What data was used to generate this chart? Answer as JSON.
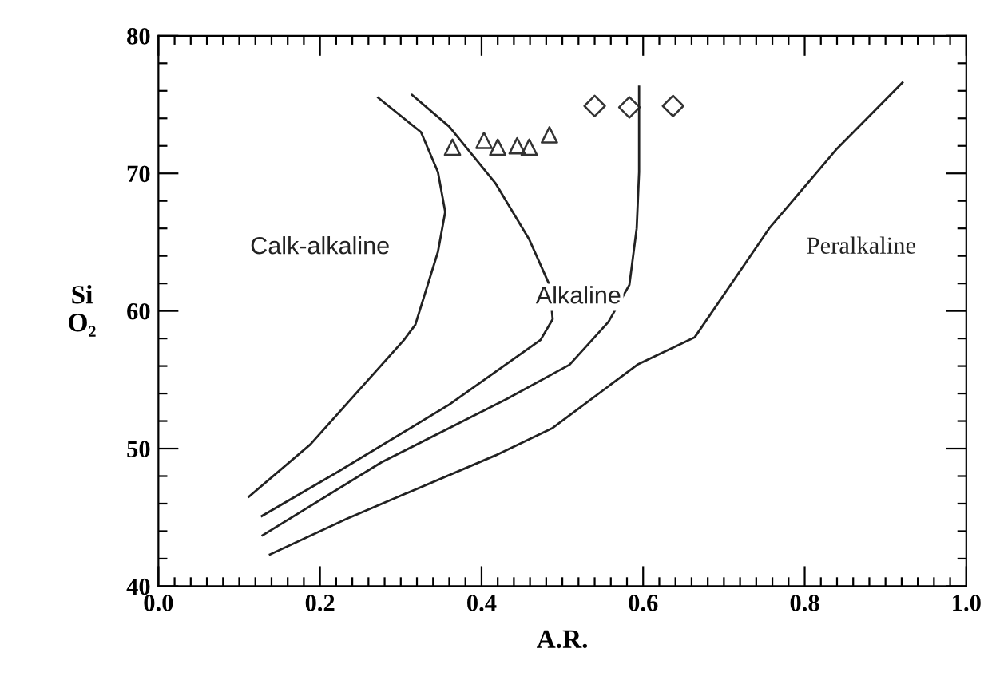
{
  "chart_data": {
    "type": "line",
    "xlabel": "A.R.",
    "ylabel": "Si O₂",
    "xlim": [
      0.0,
      1.0
    ],
    "ylim": [
      40,
      80
    ],
    "grid": false,
    "legend": false,
    "xticks": [
      {
        "value": 0.0,
        "label": "0.0"
      },
      {
        "value": 0.02,
        "label": null
      },
      {
        "value": 0.04,
        "label": null
      },
      {
        "value": 0.06,
        "label": null
      },
      {
        "value": 0.08,
        "label": null
      },
      {
        "value": 0.1,
        "label": null
      },
      {
        "value": 0.12,
        "label": null
      },
      {
        "value": 0.14,
        "label": null
      },
      {
        "value": 0.16,
        "label": null
      },
      {
        "value": 0.18,
        "label": null
      },
      {
        "value": 0.2,
        "label": "0.2"
      },
      {
        "value": 0.22,
        "label": null
      },
      {
        "value": 0.24,
        "label": null
      },
      {
        "value": 0.26,
        "label": null
      },
      {
        "value": 0.28,
        "label": null
      },
      {
        "value": 0.3,
        "label": null
      },
      {
        "value": 0.32,
        "label": null
      },
      {
        "value": 0.34,
        "label": null
      },
      {
        "value": 0.36,
        "label": null
      },
      {
        "value": 0.38,
        "label": null
      },
      {
        "value": 0.4,
        "label": "0.4"
      },
      {
        "value": 0.42,
        "label": null
      },
      {
        "value": 0.44,
        "label": null
      },
      {
        "value": 0.46,
        "label": null
      },
      {
        "value": 0.48,
        "label": null
      },
      {
        "value": 0.5,
        "label": null
      },
      {
        "value": 0.52,
        "label": null
      },
      {
        "value": 0.54,
        "label": null
      },
      {
        "value": 0.56,
        "label": null
      },
      {
        "value": 0.58,
        "label": null
      },
      {
        "value": 0.6,
        "label": "0.6"
      },
      {
        "value": 0.62,
        "label": null
      },
      {
        "value": 0.64,
        "label": null
      },
      {
        "value": 0.66,
        "label": null
      },
      {
        "value": 0.68,
        "label": null
      },
      {
        "value": 0.7,
        "label": null
      },
      {
        "value": 0.72,
        "label": null
      },
      {
        "value": 0.74,
        "label": null
      },
      {
        "value": 0.76,
        "label": null
      },
      {
        "value": 0.78,
        "label": null
      },
      {
        "value": 0.8,
        "label": "0.8"
      },
      {
        "value": 0.82,
        "label": null
      },
      {
        "value": 0.84,
        "label": null
      },
      {
        "value": 0.86,
        "label": null
      },
      {
        "value": 0.88,
        "label": null
      },
      {
        "value": 0.9,
        "label": null
      },
      {
        "value": 0.92,
        "label": null
      },
      {
        "value": 0.94,
        "label": null
      },
      {
        "value": 0.96,
        "label": null
      },
      {
        "value": 0.98,
        "label": null
      },
      {
        "value": 1.0,
        "label": "1.0"
      }
    ],
    "yticks": [
      40,
      {
        "value": 42,
        "label": null
      },
      {
        "value": 44,
        "label": null
      },
      {
        "value": 46,
        "label": null
      },
      {
        "value": 48,
        "label": null
      },
      50,
      {
        "value": 52,
        "label": null
      },
      {
        "value": 54,
        "label": null
      },
      {
        "value": 56,
        "label": null
      },
      {
        "value": 58,
        "label": null
      },
      60,
      {
        "value": 62,
        "label": null
      },
      {
        "value": 64,
        "label": null
      },
      {
        "value": 66,
        "label": null
      },
      {
        "value": 68,
        "label": null
      },
      70,
      {
        "value": 72,
        "label": null
      },
      {
        "value": 74,
        "label": null
      },
      {
        "value": 76,
        "label": null
      },
      {
        "value": 78,
        "label": null
      },
      80
    ],
    "series": [
      {
        "color": "#222222",
        "line_style": "solid",
        "marker": "none",
        "x": [
          0.112,
          0.188,
          0.304,
          0.318,
          0.346,
          0.355,
          0.346,
          0.325,
          0.272
        ],
        "values": [
          46.5,
          50.3,
          57.9,
          59.0,
          64.3,
          67.2,
          70.1,
          73.0,
          75.5
        ]
      },
      {
        "color": "#222222",
        "line_style": "solid",
        "marker": "none",
        "x": [
          0.128,
          0.219,
          0.36,
          0.473,
          0.488,
          0.484,
          0.459,
          0.417,
          0.36,
          0.314
        ],
        "values": [
          45.1,
          48.2,
          53.2,
          57.9,
          59.4,
          61.9,
          65.2,
          69.3,
          73.4,
          75.7
        ]
      },
      {
        "color": "#222222",
        "line_style": "solid",
        "marker": "none",
        "x": [
          0.129,
          0.276,
          0.431,
          0.509,
          0.557,
          0.583,
          0.592,
          0.595,
          0.595
        ],
        "values": [
          43.7,
          49.0,
          53.6,
          56.1,
          59.2,
          61.9,
          66.0,
          70.1,
          76.3
        ]
      },
      {
        "color": "#222222",
        "line_style": "solid",
        "marker": "none",
        "x": [
          0.138,
          0.233,
          0.417,
          0.488,
          0.593,
          0.664,
          0.756,
          0.84,
          0.921
        ],
        "values": [
          42.3,
          44.9,
          49.5,
          51.5,
          56.1,
          58.1,
          66.0,
          71.8,
          76.6
        ]
      },
      {
        "type": "scatter",
        "color": "#333333",
        "marker": "triangle",
        "x": [
          0.364,
          0.403,
          0.42,
          0.444,
          0.459,
          0.484
        ],
        "values": [
          71.9,
          72.4,
          71.9,
          72.0,
          71.9,
          72.8
        ]
      },
      {
        "type": "scatter",
        "color": "#333333",
        "marker": "diamond",
        "x": [
          0.54,
          0.583,
          0.637
        ],
        "values": [
          74.9,
          74.8,
          74.9
        ]
      }
    ],
    "annotations": [
      "Calk-alkaline",
      "Alkaline",
      "Peralkaline"
    ]
  }
}
